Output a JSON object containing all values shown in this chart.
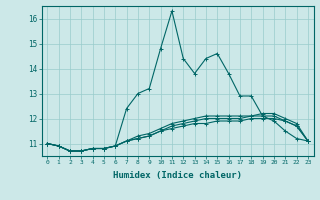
{
  "xlabel": "Humidex (Indice chaleur)",
  "bg_color": "#cce8e8",
  "line_color": "#006666",
  "grid_color": "#99cccc",
  "x_data": [
    0,
    1,
    2,
    3,
    4,
    5,
    6,
    7,
    8,
    9,
    10,
    11,
    12,
    13,
    14,
    15,
    16,
    17,
    18,
    19,
    20,
    21,
    22,
    23
  ],
  "series": [
    [
      11.0,
      10.9,
      10.7,
      10.7,
      10.8,
      10.8,
      10.9,
      12.4,
      13.0,
      13.2,
      14.8,
      16.3,
      14.4,
      13.8,
      14.4,
      14.6,
      13.8,
      12.9,
      12.9,
      12.1,
      11.9,
      11.5,
      11.2,
      11.1
    ],
    [
      11.0,
      10.9,
      10.7,
      10.7,
      10.8,
      10.8,
      10.9,
      11.1,
      11.2,
      11.3,
      11.5,
      11.6,
      11.7,
      11.8,
      11.8,
      11.9,
      11.9,
      11.9,
      12.0,
      12.0,
      12.0,
      11.9,
      11.7,
      11.1
    ],
    [
      11.0,
      10.9,
      10.7,
      10.7,
      10.8,
      10.8,
      10.9,
      11.1,
      11.2,
      11.3,
      11.5,
      11.7,
      11.8,
      11.9,
      12.0,
      12.0,
      12.0,
      12.0,
      12.1,
      12.1,
      12.1,
      11.9,
      11.7,
      11.1
    ],
    [
      11.0,
      10.9,
      10.7,
      10.7,
      10.8,
      10.8,
      10.9,
      11.1,
      11.3,
      11.4,
      11.6,
      11.8,
      11.9,
      12.0,
      12.1,
      12.1,
      12.1,
      12.1,
      12.1,
      12.2,
      12.2,
      12.0,
      11.8,
      11.1
    ]
  ],
  "ylim": [
    10.5,
    16.5
  ],
  "yticks": [
    11,
    12,
    13,
    14,
    15,
    16
  ],
  "xtick_labels": [
    "0",
    "1",
    "2",
    "3",
    "4",
    "5",
    "6",
    "7",
    "8",
    "9",
    "10",
    "11",
    "12",
    "13",
    "14",
    "15",
    "16",
    "17",
    "18",
    "19",
    "20",
    "21",
    "22",
    "23"
  ],
  "marker": "+"
}
